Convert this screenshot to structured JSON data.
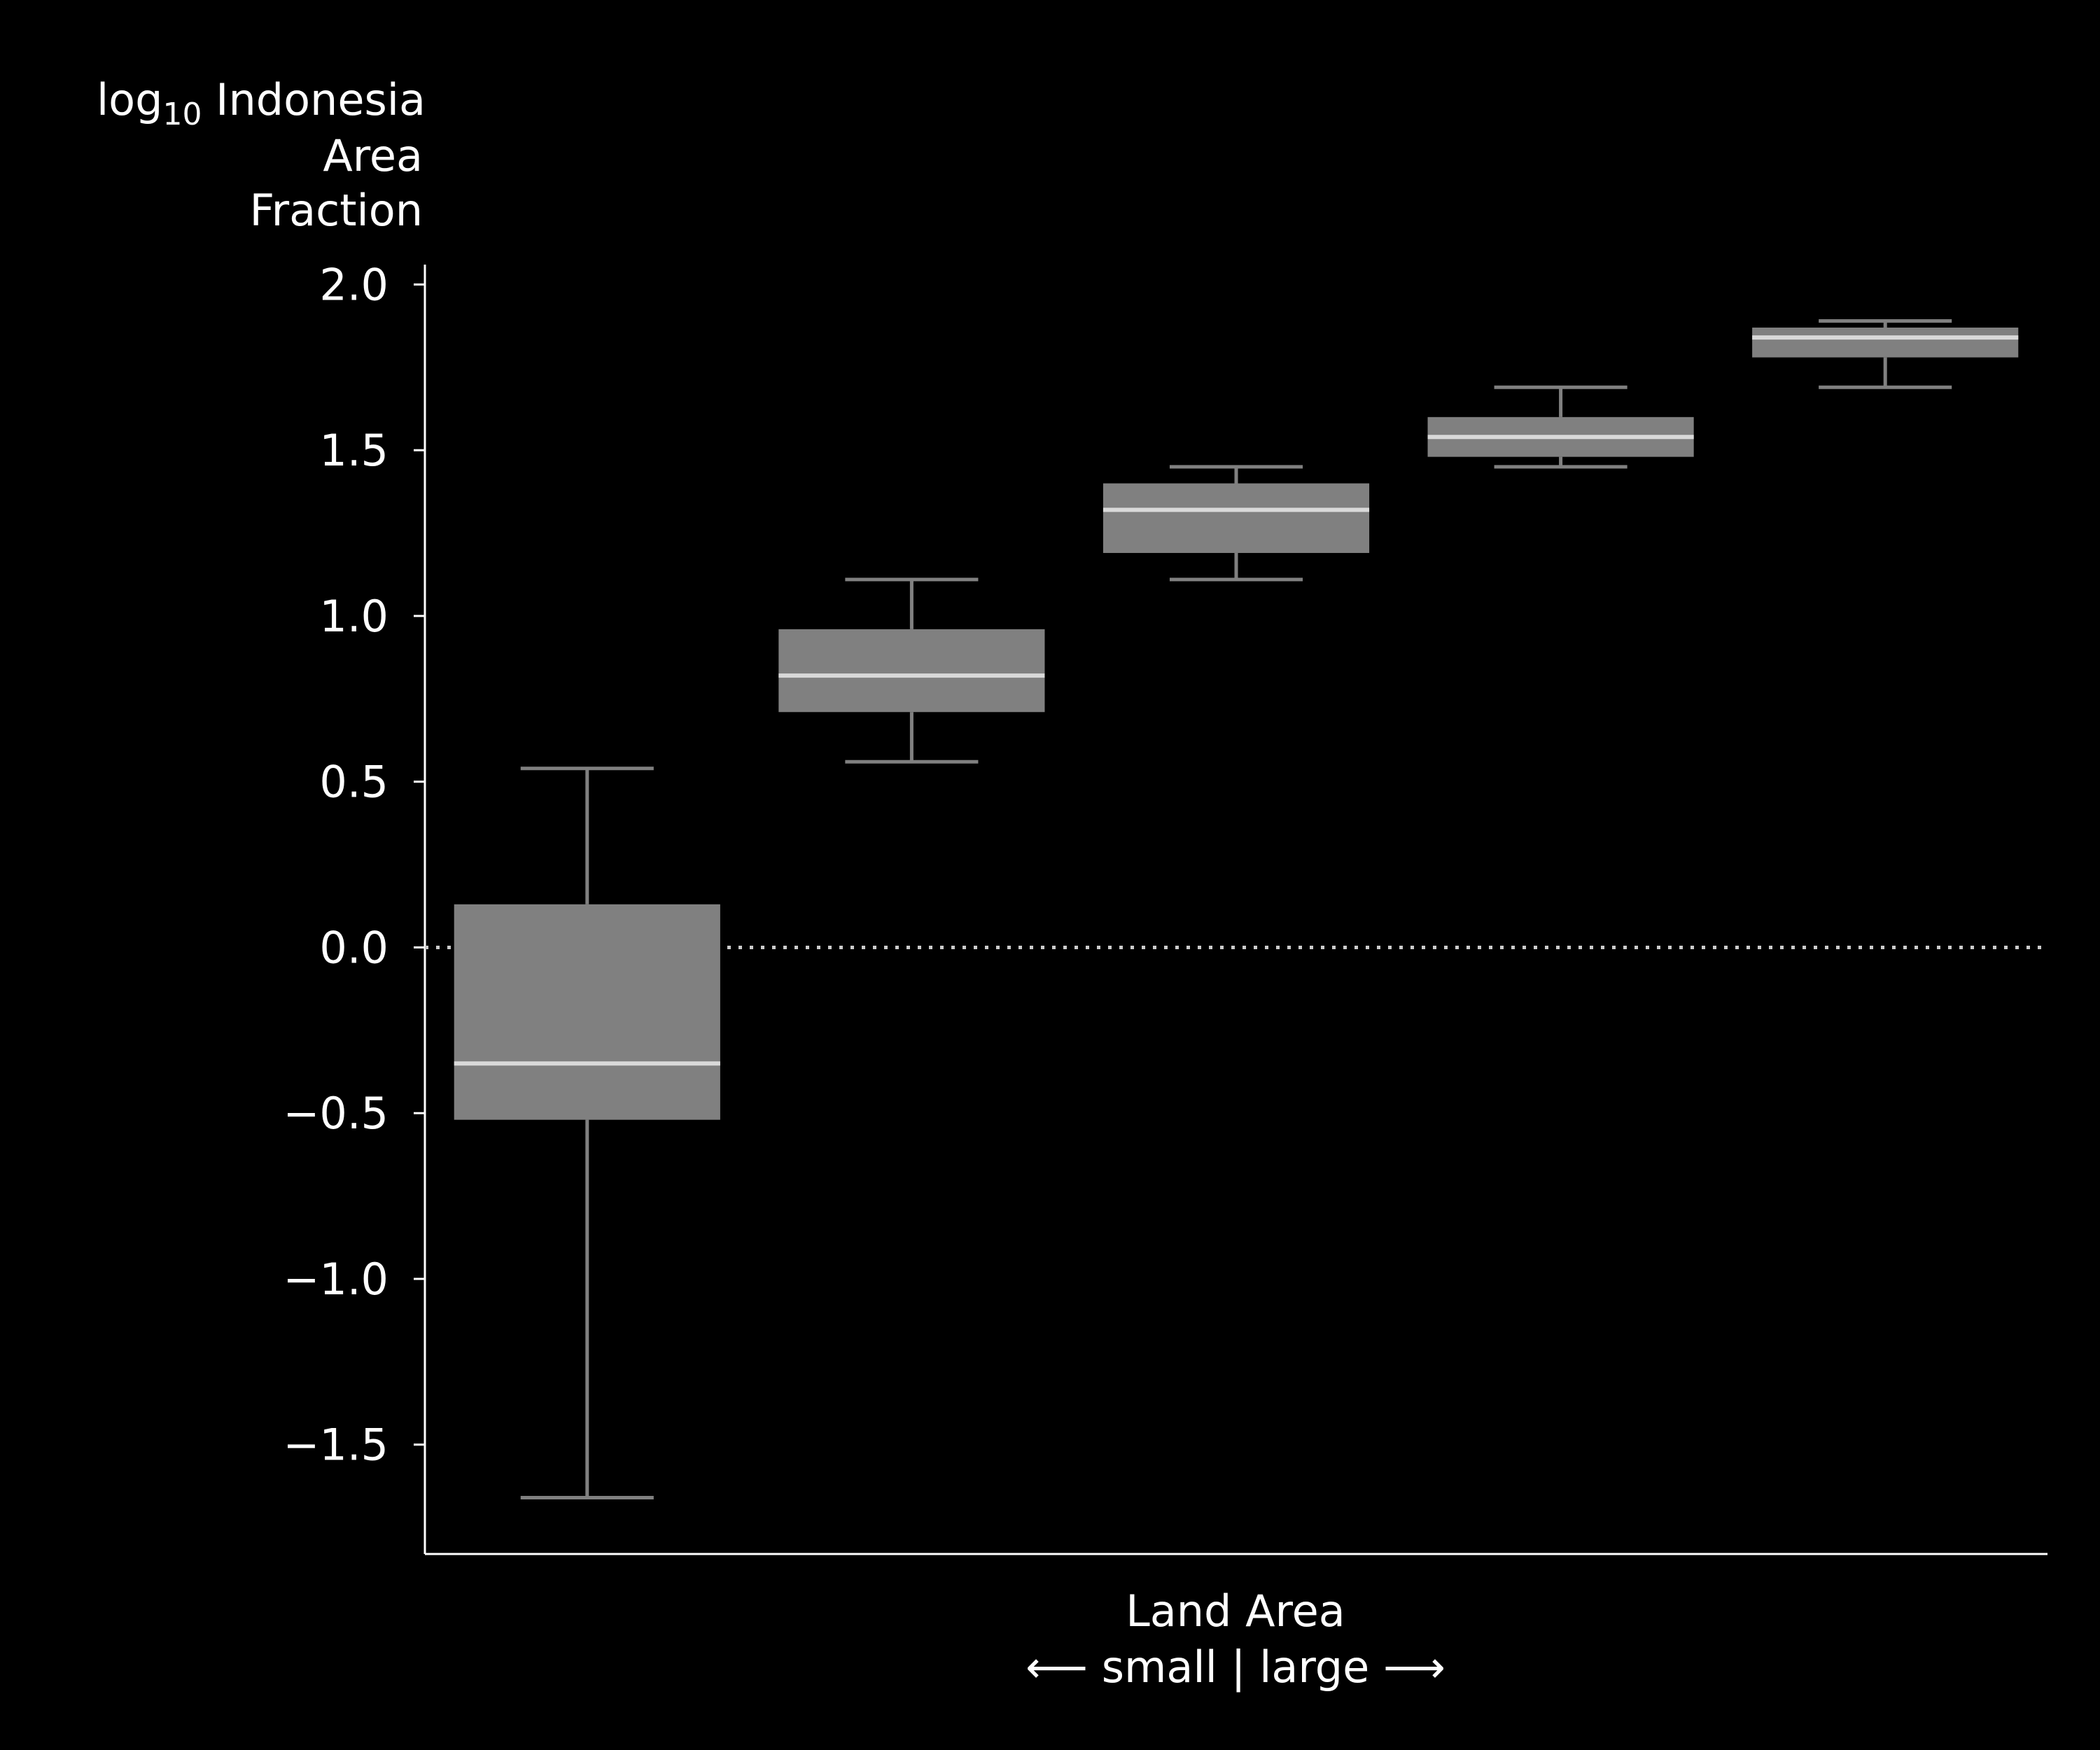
{
  "chart_data": {
    "type": "box",
    "ylabel_lines": [
      "log",
      "10",
      " Indonesia",
      "Area",
      "Fraction"
    ],
    "xlabel_lines": [
      "Land Area",
      "⟵ small | large ⟶"
    ],
    "ylim": [
      -1.83,
      2.06
    ],
    "yticks": [
      -1.5,
      -1.0,
      -0.5,
      0.0,
      0.5,
      1.0,
      1.5,
      2.0
    ],
    "ytick_labels": [
      "−1.5",
      "−1.0",
      "−0.5",
      "0.0",
      "0.5",
      "1.0",
      "1.5",
      "2.0"
    ],
    "reference_line": {
      "y": 0.0,
      "style": "dotted"
    },
    "box_color": "#808080",
    "median_color": "#d9d9d9",
    "background": "#000000",
    "grid": false,
    "legend": "none",
    "boxes": [
      {
        "whisker_low": -1.66,
        "q1": -0.52,
        "median": -0.35,
        "q3": 0.13,
        "whisker_high": 0.54
      },
      {
        "whisker_low": 0.56,
        "q1": 0.71,
        "median": 0.82,
        "q3": 0.96,
        "whisker_high": 1.11
      },
      {
        "whisker_low": 1.11,
        "q1": 1.19,
        "median": 1.32,
        "q3": 1.4,
        "whisker_high": 1.45
      },
      {
        "whisker_low": 1.45,
        "q1": 1.48,
        "median": 1.54,
        "q3": 1.6,
        "whisker_high": 1.69
      },
      {
        "whisker_low": 1.69,
        "q1": 1.78,
        "median": 1.84,
        "q3": 1.87,
        "whisker_high": 1.89
      }
    ]
  }
}
